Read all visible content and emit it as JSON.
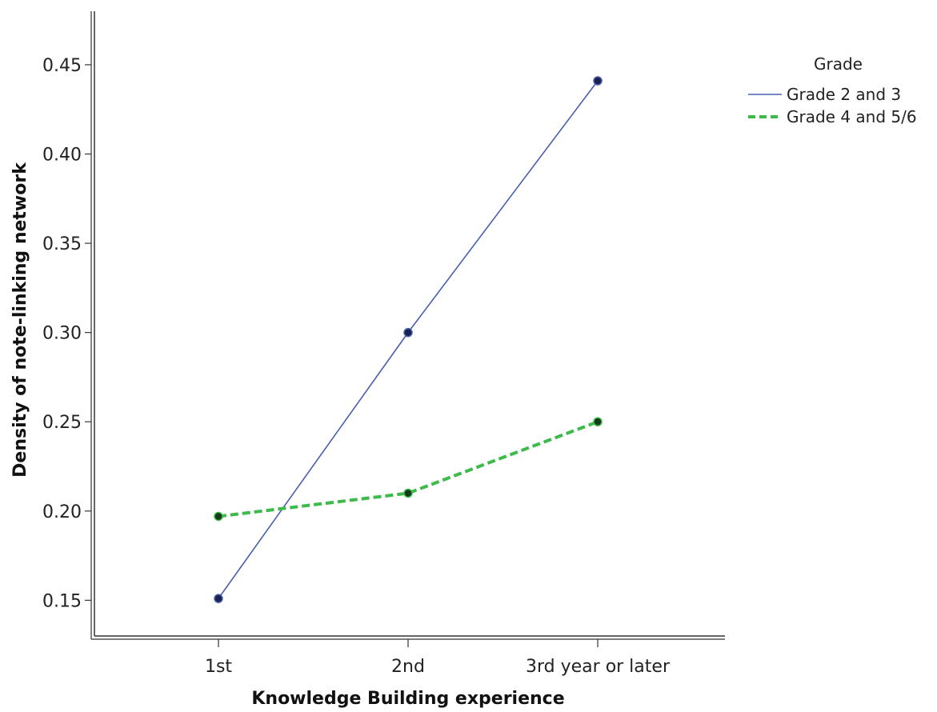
{
  "chart_data": {
    "type": "line",
    "title": "",
    "xlabel": "Knowledge Building experience",
    "ylabel": "Density of note-linking network",
    "categories": [
      "1st",
      "2nd",
      "3rd year or later"
    ],
    "ylim": [
      0.13,
      0.48
    ],
    "yticks": [
      0.15,
      0.2,
      0.25,
      0.3,
      0.35,
      0.4,
      0.45
    ],
    "ytick_labels": [
      "0.15",
      "0.20",
      "0.25",
      "0.30",
      "0.35",
      "0.40",
      "0.45"
    ],
    "grid": false,
    "legend": {
      "title": "Grade",
      "placement": "top-right-outside"
    },
    "series": [
      {
        "name": "Grade 2 and 3",
        "values": [
          0.151,
          0.3,
          0.441
        ],
        "color": "#4a5fb0",
        "line_style": "solid",
        "marker_color": "#1a2350"
      },
      {
        "name": "Grade 4 and 5/6",
        "values": [
          0.197,
          0.21,
          0.25
        ],
        "color": "#3dbb4a",
        "line_style": "dashed",
        "marker_color": "#163a1a"
      }
    ]
  }
}
